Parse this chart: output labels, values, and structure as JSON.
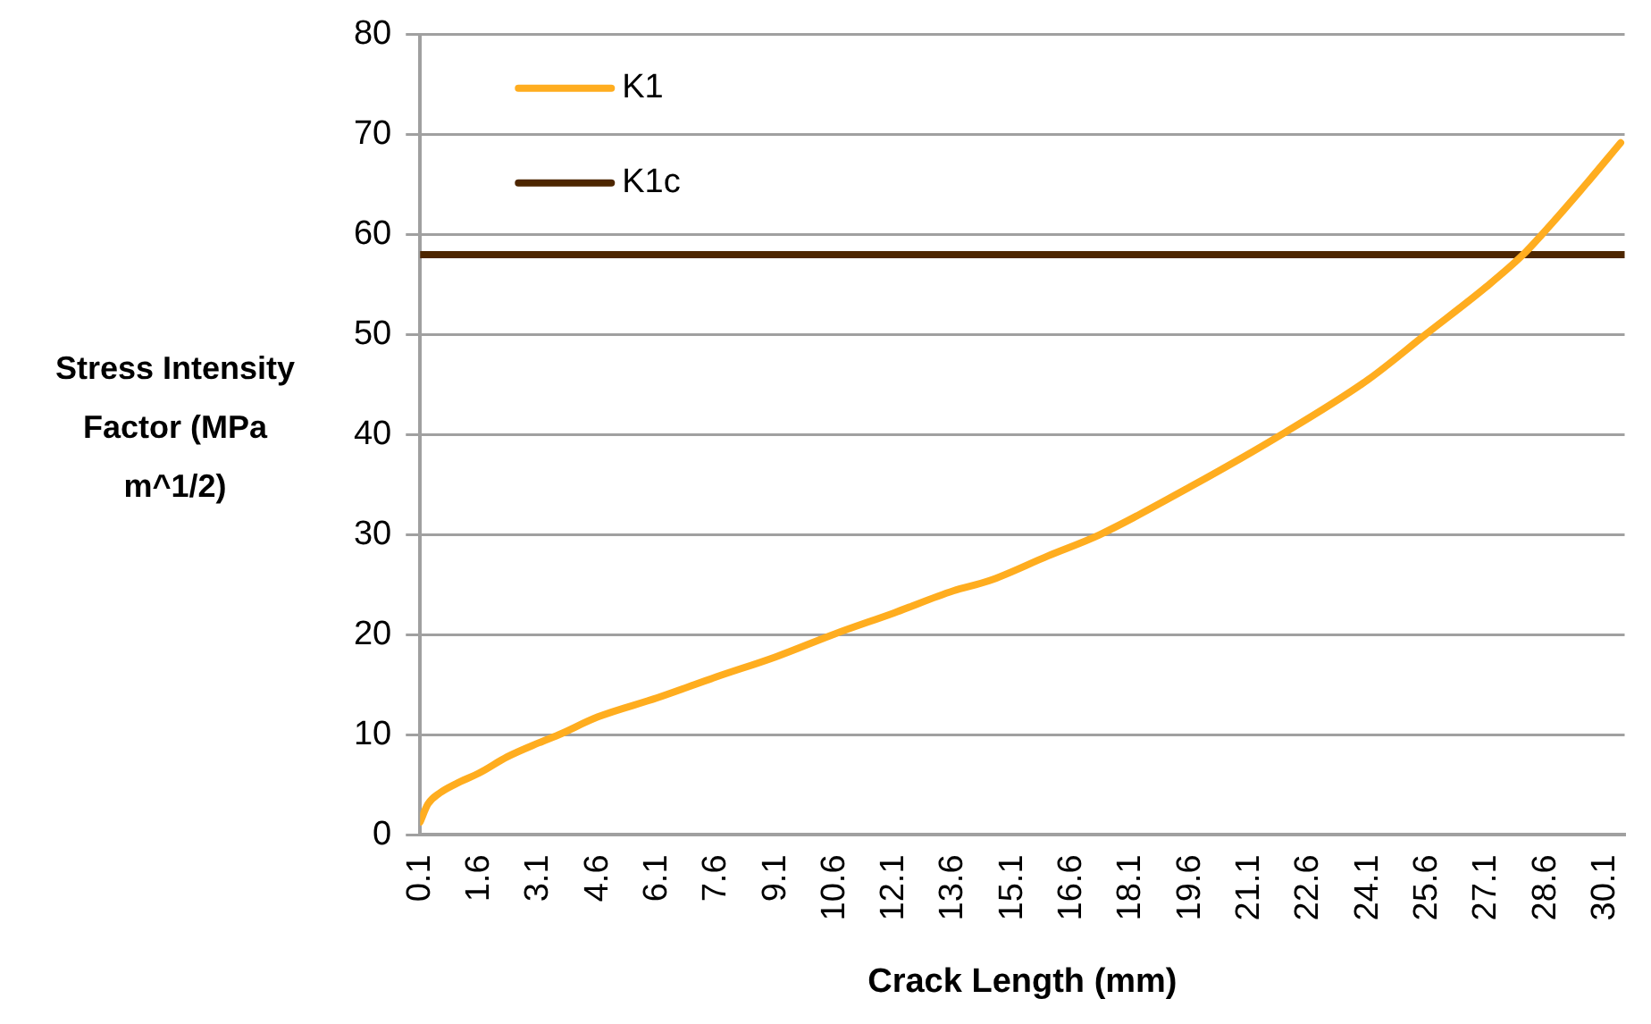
{
  "chart_data": {
    "type": "line",
    "xlabel": "Crack Length (mm)",
    "ylabel": "Stress Intensity Factor (MPa m^1/2)",
    "xlim": [
      0.1,
      30.6
    ],
    "xticks": [
      0.1,
      1.6,
      3.1,
      4.6,
      6.1,
      7.6,
      9.1,
      10.6,
      12.1,
      13.6,
      15.1,
      16.6,
      18.1,
      19.6,
      21.1,
      22.6,
      24.1,
      25.6,
      27.1,
      28.6,
      30.1
    ],
    "ylim": [
      0,
      80
    ],
    "yticks": [
      0,
      10,
      20,
      30,
      40,
      50,
      60,
      70,
      80
    ],
    "grid": "y",
    "legend": "top left",
    "marker": "none",
    "line_style": "solid",
    "series": [
      {
        "name": "K1",
        "color": "#ffad1f",
        "x": [
          0.1,
          0.3,
          0.6,
          1.0,
          1.6,
          2.3,
          3.1,
          3.6,
          4.6,
          6.1,
          7.6,
          9.1,
          10.6,
          12.1,
          13.6,
          14.5,
          16.0,
          17.3,
          19.6,
          21.9,
          24.1,
          25.55,
          27.1,
          28.0,
          28.5,
          29.5,
          30.5
        ],
        "values": [
          1.3,
          3.1,
          4.2,
          5.1,
          6.2,
          7.8,
          9.2,
          10,
          11.8,
          13.7,
          15.8,
          17.8,
          20.1,
          22.2,
          24.4,
          25.4,
          27.9,
          30,
          34.8,
          40,
          45.5,
          50,
          54.8,
          57.9,
          60,
          64.5,
          69.2
        ]
      },
      {
        "name": "K1c",
        "color": "#4d2600",
        "x": [
          0.1,
          30.6
        ],
        "values": [
          58,
          58
        ]
      }
    ]
  }
}
